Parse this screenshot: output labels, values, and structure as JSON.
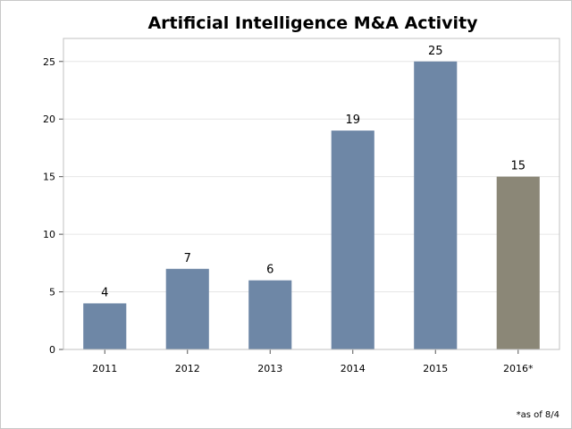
{
  "chart_data": {
    "type": "bar",
    "title": "Artificial Intelligence M&A Activity",
    "categories": [
      "2011",
      "2012",
      "2013",
      "2014",
      "2015",
      "2016*"
    ],
    "values": [
      4,
      7,
      6,
      19,
      25,
      15
    ],
    "data_labels": [
      "4",
      "7",
      "6",
      "19",
      "25",
      "15"
    ],
    "xlabel": "",
    "ylabel": "",
    "ylim": [
      0,
      27
    ],
    "yticks": [
      0,
      5,
      10,
      15,
      20,
      25
    ],
    "grid": true,
    "legend": "none",
    "colors": {
      "default": "#6e87a6",
      "highlight": "#8b8777"
    },
    "highlight_index": 5,
    "footnote": "*as of 8/4"
  }
}
